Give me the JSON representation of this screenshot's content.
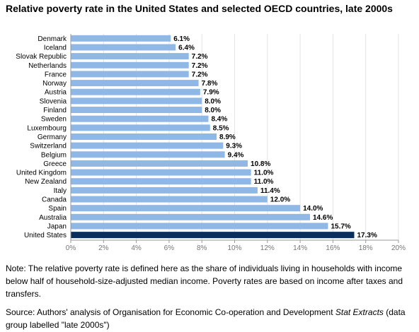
{
  "title": "Relative poverty rate in the United States and selected OECD countries, late 2000s",
  "note": "Note: The relative poverty rate is defined here as the share of individuals living in households with income below half of household-size-adjusted median income. Poverty rates are based on income after taxes and transfers.",
  "source": {
    "before": "Source: Authors' analysis of Organisation for Economic Co-operation and Development ",
    "italic": "Stat Extracts",
    "after": " (data group labelled \"late 2000s\")"
  },
  "colors": {
    "bar": "#8fb8e6",
    "highlight": "#0b2f5c",
    "grid": "#e3e3e3",
    "axis": "#999999",
    "tick_text": "#777777"
  },
  "chart_data": {
    "type": "bar",
    "orientation": "horizontal",
    "categories": [
      "Denmark",
      "Iceland",
      "Slovak Republic",
      "Netherlands",
      "France",
      "Norway",
      "Austria",
      "Slovenia",
      "Finland",
      "Sweden",
      "Luxembourg",
      "Germany",
      "Switzerland",
      "Belgium",
      "Greece",
      "United Kingdom",
      "New Zealand",
      "Italy",
      "Canada",
      "Spain",
      "Australia",
      "Japan",
      "United States"
    ],
    "values": [
      6.1,
      6.4,
      7.2,
      7.2,
      7.2,
      7.8,
      7.9,
      8.0,
      8.0,
      8.4,
      8.5,
      8.9,
      9.3,
      9.4,
      10.8,
      11.0,
      11.0,
      11.4,
      12.0,
      14.0,
      14.6,
      15.7,
      17.3
    ],
    "value_labels": [
      "6.1%",
      "6.4%",
      "7.2%",
      "7.2%",
      "7.2%",
      "7.8%",
      "7.9%",
      "8.0%",
      "8.0%",
      "8.4%",
      "8.5%",
      "8.9%",
      "9.3%",
      "9.4%",
      "10.8%",
      "11.0%",
      "11.0%",
      "11.4%",
      "12.0%",
      "14.0%",
      "14.6%",
      "15.7%",
      "17.3%"
    ],
    "highlight": "United States",
    "xlim": [
      0,
      20
    ],
    "xticks": [
      0,
      2,
      4,
      6,
      8,
      10,
      12,
      14,
      16,
      18,
      20
    ],
    "xtick_labels": [
      "0%",
      "2%",
      "4%",
      "6%",
      "8%",
      "10%",
      "12%",
      "14%",
      "16%",
      "18%",
      "20%"
    ],
    "grid": true,
    "xlabel": "",
    "ylabel": ""
  }
}
